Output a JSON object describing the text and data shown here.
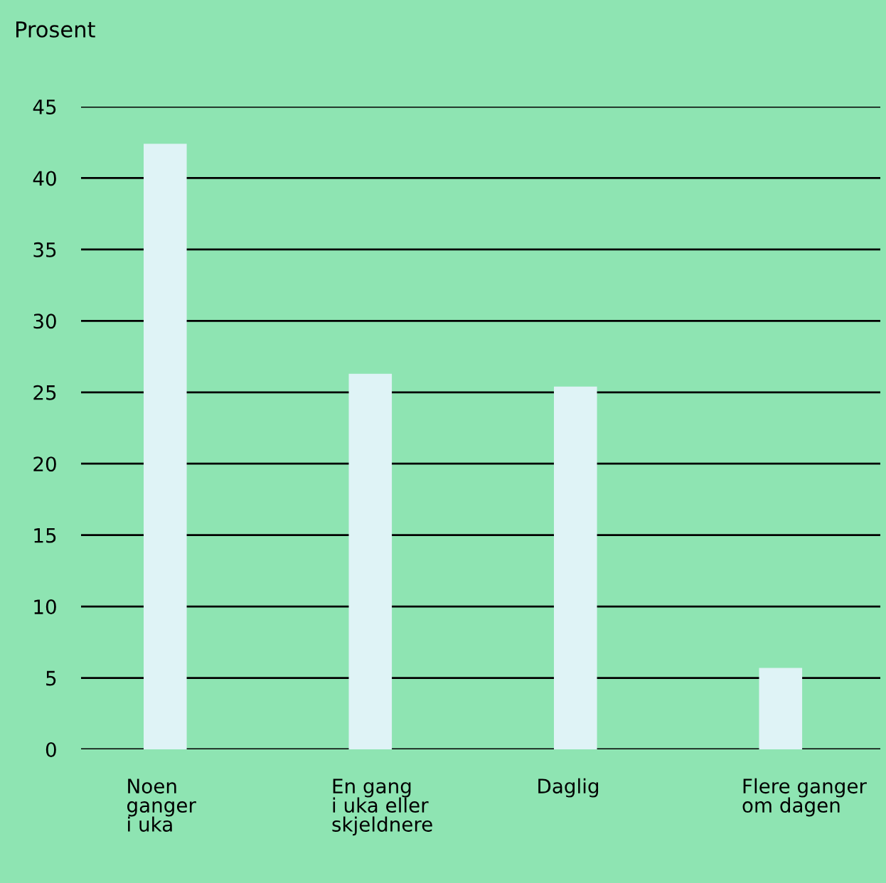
{
  "chart_data": {
    "type": "bar",
    "ylabel": "Prosent",
    "categories": [
      "Noen\nganger\ni uka",
      "En gang\ni uka eller\nskjeldnere",
      "Daglig",
      "Flere ganger\nom dagen"
    ],
    "values": [
      42.4,
      26.3,
      25.4,
      5.7
    ],
    "color": "#dff3f6",
    "ylim": [
      0,
      45
    ],
    "yticks": [
      0,
      5,
      10,
      15,
      20,
      25,
      30,
      35,
      40,
      45
    ],
    "grid": "y"
  }
}
